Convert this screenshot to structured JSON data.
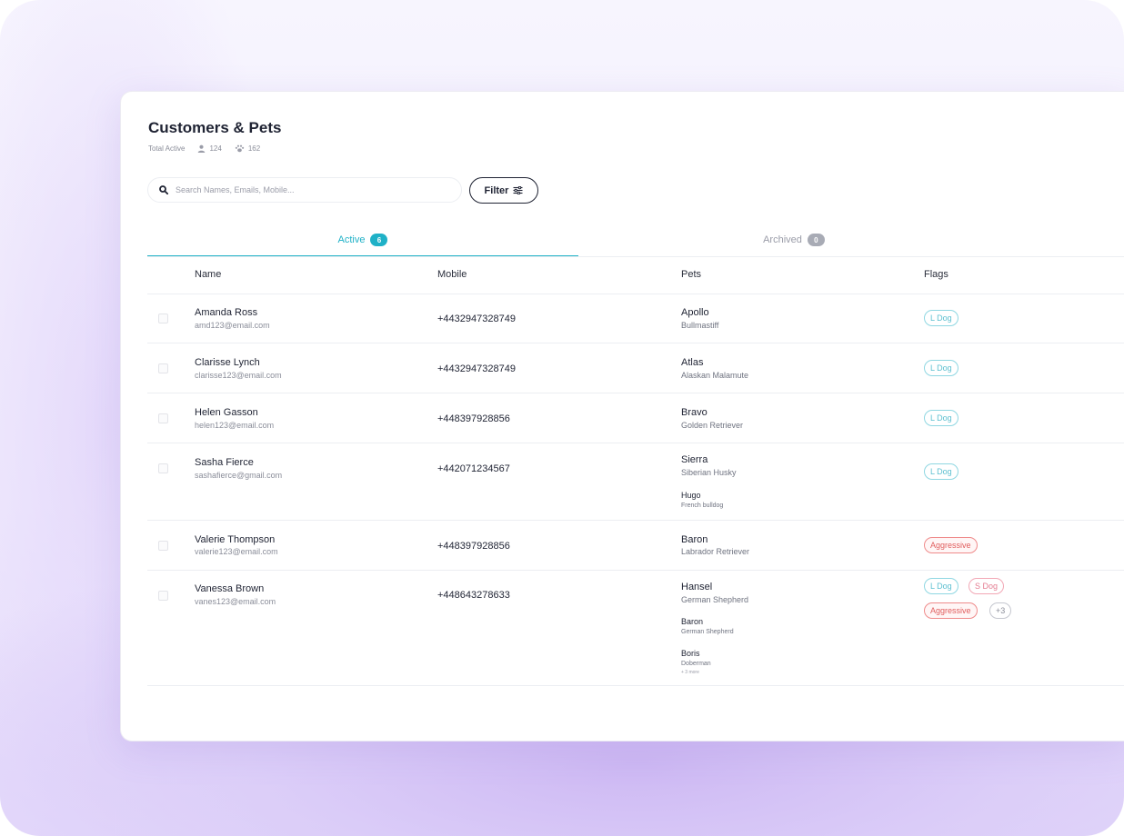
{
  "page": {
    "title": "Customers & Pets",
    "stats": {
      "label": "Total Active",
      "customers": "124",
      "pets": "162"
    }
  },
  "search": {
    "placeholder": "Search Names, Emails, Mobile...",
    "value": ""
  },
  "filter": {
    "label": "Filter"
  },
  "tabs": [
    {
      "label": "Active",
      "count": "6",
      "active": true,
      "color": "#1fb1c7"
    },
    {
      "label": "Archived",
      "count": "0",
      "active": false,
      "color": "#a8abb5"
    }
  ],
  "table": {
    "headers": {
      "name": "Name",
      "mobile": "Mobile",
      "pets": "Pets",
      "flags": "Flags"
    },
    "rows": [
      {
        "name": "Amanda Ross",
        "email": "amd123@email.com",
        "mobile": "+4432947328749",
        "pets": [
          {
            "name": "Apollo",
            "breed": "Bullmastiff"
          }
        ],
        "flags": [
          "L Dog"
        ]
      },
      {
        "name": "Clarisse Lynch",
        "email": "clarisse123@email.com",
        "mobile": "+4432947328749",
        "pets": [
          {
            "name": "Atlas",
            "breed": "Alaskan Malamute"
          }
        ],
        "flags": [
          "L Dog"
        ]
      },
      {
        "name": "Helen Gasson",
        "email": "helen123@email.com",
        "mobile": "+448397928856",
        "pets": [
          {
            "name": "Bravo",
            "breed": "Golden Retriever"
          }
        ],
        "flags": [
          "L Dog"
        ]
      },
      {
        "name": "Sasha Fierce",
        "email": "sashafierce@gmail.com",
        "mobile": "+442071234567",
        "pets": [
          {
            "name": "Sierra",
            "breed": "Siberian Husky"
          },
          {
            "name": "Hugo",
            "breed": "French bulldog"
          }
        ],
        "flags": [
          "L Dog"
        ]
      },
      {
        "name": "Valerie Thompson",
        "email": "valerie123@email.com",
        "mobile": "+448397928856",
        "pets": [
          {
            "name": "Baron",
            "breed": "Labrador Retriever"
          }
        ],
        "flags": [
          "Aggressive"
        ]
      },
      {
        "name": "Vanessa Brown",
        "email": "vanes123@email.com",
        "mobile": "+448643278633",
        "pets": [
          {
            "name": "Hansel",
            "breed": "German Shepherd"
          },
          {
            "name": "Baron",
            "breed": "German Shepherd"
          },
          {
            "name": "Boris",
            "breed": "Doberman"
          }
        ],
        "pets_more": "+ 3 more",
        "flags": [
          "L Dog",
          "S Dog",
          "Aggressive",
          "+3"
        ]
      }
    ]
  }
}
